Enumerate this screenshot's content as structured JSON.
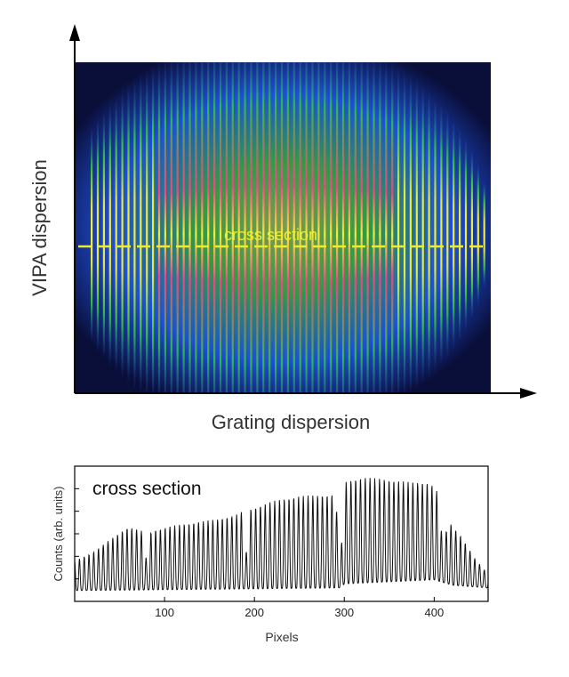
{
  "chart_data": [
    {
      "type": "heatmap",
      "xlabel": "Grating dispersion",
      "ylabel": "VIPA dispersion",
      "annotation": "cross section",
      "colors": {
        "background": "#0a0f3a",
        "low": "#1f3ee6",
        "mid": "#2fc63a",
        "high": "#f1ee3a",
        "peak": "#ff3c8a",
        "cross_section_line": "#f0ec2a"
      }
    },
    {
      "type": "line",
      "title": "cross section",
      "xlabel": "Pixels",
      "ylabel": "Counts (arb. units)",
      "xlim": [
        0,
        460
      ],
      "xticks": [
        100,
        200,
        300,
        400
      ],
      "grid": false,
      "series": [
        {
          "period": 5.3,
          "envelope": [
            [
              0,
              0.3
            ],
            [
              20,
              0.36
            ],
            [
              40,
              0.46
            ],
            [
              60,
              0.55
            ],
            [
              75,
              0.52
            ],
            [
              80,
              0.3
            ],
            [
              85,
              0.52
            ],
            [
              110,
              0.56
            ],
            [
              140,
              0.59
            ],
            [
              160,
              0.61
            ],
            [
              180,
              0.64
            ],
            [
              185,
              0.7
            ],
            [
              190,
              0.3
            ],
            [
              195,
              0.68
            ],
            [
              220,
              0.74
            ],
            [
              250,
              0.78
            ],
            [
              290,
              0.79
            ],
            [
              296,
              0.3
            ],
            [
              300,
              0.88
            ],
            [
              320,
              0.92
            ],
            [
              350,
              0.9
            ],
            [
              375,
              0.88
            ],
            [
              395,
              0.88
            ],
            [
              405,
              0.8
            ],
            [
              410,
              0.35
            ],
            [
              415,
              0.6
            ],
            [
              430,
              0.48
            ],
            [
              445,
              0.32
            ],
            [
              460,
              0.2
            ]
          ],
          "baseline": [
            [
              0,
              0.08
            ],
            [
              150,
              0.09
            ],
            [
              296,
              0.1
            ],
            [
              300,
              0.13
            ],
            [
              400,
              0.16
            ],
            [
              420,
              0.12
            ],
            [
              460,
              0.1
            ]
          ]
        }
      ]
    }
  ]
}
